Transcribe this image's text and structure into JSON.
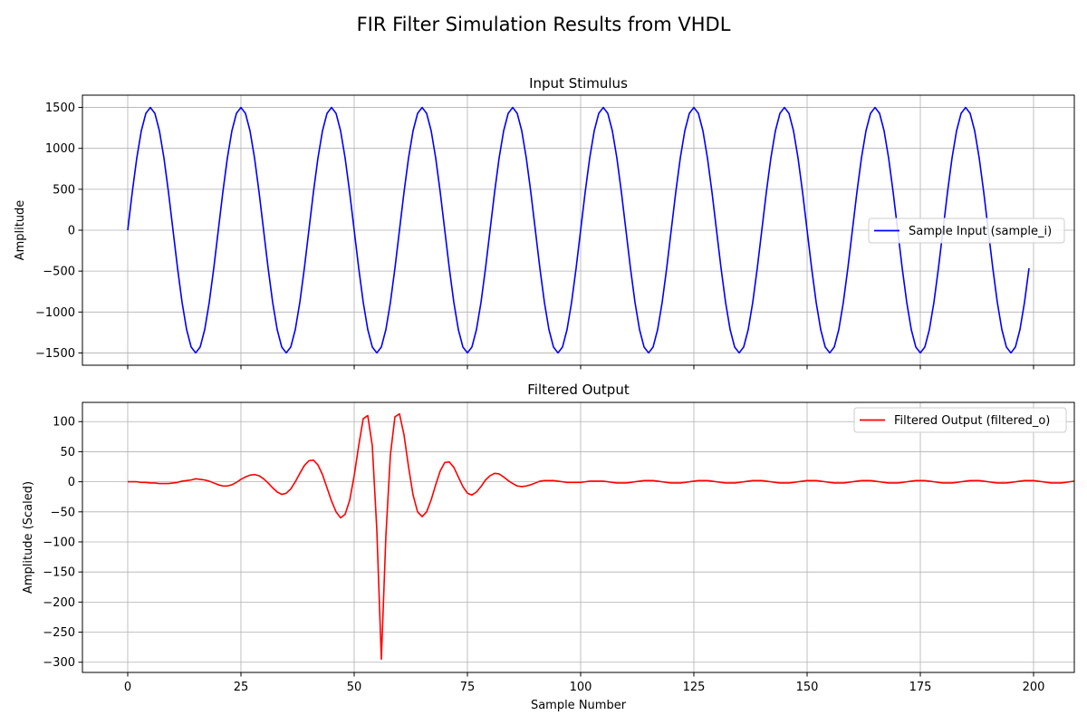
{
  "figure": {
    "suptitle": "FIR Filter Simulation Results from VHDL"
  },
  "chart_data": [
    {
      "type": "line",
      "title": "Input Stimulus",
      "xlabel": "",
      "ylabel": "Amplitude",
      "xlim": [
        -10,
        209
      ],
      "ylim": [
        -1650,
        1650
      ],
      "xticks": [
        0,
        25,
        50,
        75,
        100,
        125,
        150,
        175,
        200
      ],
      "xtick_labels_visible": false,
      "yticks": [
        -1500,
        -1000,
        -500,
        0,
        500,
        1000,
        1500
      ],
      "ytick_labels": [
        "−1500",
        "−1000",
        "−500",
        "0",
        "500",
        "1000",
        "1500"
      ],
      "grid": true,
      "legend_position": "center-right",
      "series": [
        {
          "name": "Sample Input (sample_i)",
          "color": "#0000ff",
          "x_start": 0,
          "x_step": 1,
          "values": [
            0,
            464,
            882,
            1214,
            1427,
            1500,
            1427,
            1214,
            882,
            464,
            0,
            -464,
            -882,
            -1214,
            -1427,
            -1500,
            -1427,
            -1214,
            -882,
            -464,
            0,
            464,
            882,
            1214,
            1427,
            1500,
            1427,
            1214,
            882,
            464,
            0,
            -464,
            -882,
            -1214,
            -1427,
            -1500,
            -1427,
            -1214,
            -882,
            -464,
            0,
            464,
            882,
            1214,
            1427,
            1500,
            1427,
            1214,
            882,
            464,
            0,
            -464,
            -882,
            -1214,
            -1427,
            -1500,
            -1427,
            -1214,
            -882,
            -464,
            0,
            464,
            882,
            1214,
            1427,
            1500,
            1427,
            1214,
            882,
            464,
            0,
            -464,
            -882,
            -1214,
            -1427,
            -1500,
            -1427,
            -1214,
            -882,
            -464,
            0,
            464,
            882,
            1214,
            1427,
            1500,
            1427,
            1214,
            882,
            464,
            0,
            -464,
            -882,
            -1214,
            -1427,
            -1500,
            -1427,
            -1214,
            -882,
            -464,
            0,
            464,
            882,
            1214,
            1427,
            1500,
            1427,
            1214,
            882,
            464,
            0,
            -464,
            -882,
            -1214,
            -1427,
            -1500,
            -1427,
            -1214,
            -882,
            -464,
            0,
            464,
            882,
            1214,
            1427,
            1500,
            1427,
            1214,
            882,
            464,
            0,
            -464,
            -882,
            -1214,
            -1427,
            -1500,
            -1427,
            -1214,
            -882,
            -464,
            0,
            464,
            882,
            1214,
            1427,
            1500,
            1427,
            1214,
            882,
            464,
            0,
            -464,
            -882,
            -1214,
            -1427,
            -1500,
            -1427,
            -1214,
            -882,
            -464,
            0,
            464,
            882,
            1214,
            1427,
            1500,
            1427,
            1214,
            882,
            464,
            0,
            -464,
            -882,
            -1214,
            -1427,
            -1500,
            -1427,
            -1214,
            -882,
            -464,
            0,
            464,
            882,
            1214,
            1427,
            1500,
            1427,
            1214,
            882,
            464,
            0,
            -464,
            -882,
            -1214,
            -1427,
            -1500,
            -1427,
            -1214,
            -882,
            -464
          ]
        }
      ]
    },
    {
      "type": "line",
      "title": "Filtered Output",
      "xlabel": "Sample Number",
      "ylabel": "Amplitude (Scaled)",
      "xlim": [
        -10,
        209
      ],
      "ylim": [
        -317,
        132
      ],
      "xticks": [
        0,
        25,
        50,
        75,
        100,
        125,
        150,
        175,
        200
      ],
      "xtick_labels": [
        "0",
        "25",
        "50",
        "75",
        "100",
        "125",
        "150",
        "175",
        "200"
      ],
      "yticks": [
        -300,
        -250,
        -200,
        -150,
        -100,
        -50,
        0,
        50,
        100
      ],
      "ytick_labels": [
        "−300",
        "−250",
        "−200",
        "−150",
        "−100",
        "−50",
        "0",
        "50",
        "100"
      ],
      "grid": true,
      "legend_position": "upper-right",
      "series": [
        {
          "name": "Filtered Output (filtered_o)",
          "color": "#ff0000",
          "x_start": 0,
          "x_step": 1,
          "values": [
            0,
            0,
            0,
            -1,
            -1,
            -2,
            -2,
            -3,
            -3,
            -3,
            -2,
            -1,
            1,
            2,
            3,
            5,
            4,
            3,
            1,
            -2,
            -5,
            -7,
            -7,
            -5,
            -1,
            4,
            8,
            11,
            12,
            10,
            5,
            -2,
            -10,
            -17,
            -21,
            -19,
            -12,
            0,
            14,
            27,
            35,
            36,
            28,
            12,
            -10,
            -32,
            -50,
            -60,
            -54,
            -31,
            10,
            60,
            105,
            110,
            60,
            -80,
            -295,
            -90,
            45,
            108,
            113,
            78,
            25,
            -22,
            -50,
            -58,
            -50,
            -30,
            -5,
            18,
            32,
            33,
            24,
            8,
            -8,
            -19,
            -22,
            -17,
            -8,
            3,
            10,
            14,
            13,
            8,
            2,
            -3,
            -7,
            -8,
            -7,
            -5,
            -2,
            1,
            2,
            2,
            2,
            1,
            0,
            -1,
            -1,
            -1,
            -1,
            0,
            1,
            1,
            1,
            1,
            0,
            -1,
            -2,
            -2,
            -2,
            -1,
            0,
            1,
            2,
            2,
            2,
            1,
            0,
            -1,
            -2,
            -2,
            -2,
            -1,
            0,
            1,
            2,
            2,
            2,
            1,
            0,
            -1,
            -2,
            -2,
            -2,
            -1,
            0,
            1,
            2,
            2,
            2,
            1,
            0,
            -1,
            -2,
            -2,
            -2,
            -1,
            0,
            1,
            2,
            2,
            2,
            1,
            0,
            -1,
            -2,
            -2,
            -2,
            -1,
            0,
            1,
            2,
            2,
            2,
            1,
            0,
            -1,
            -2,
            -2,
            -2,
            -1,
            0,
            1,
            2,
            2,
            2,
            1,
            0,
            -1,
            -2,
            -2,
            -2,
            -1,
            0,
            1,
            2,
            2,
            2,
            1,
            0,
            -1,
            -2,
            -2,
            -2,
            -1,
            0,
            1,
            2,
            2,
            2,
            1,
            0,
            -1,
            -2,
            -2,
            -2,
            -1,
            0,
            1
          ]
        }
      ]
    }
  ]
}
